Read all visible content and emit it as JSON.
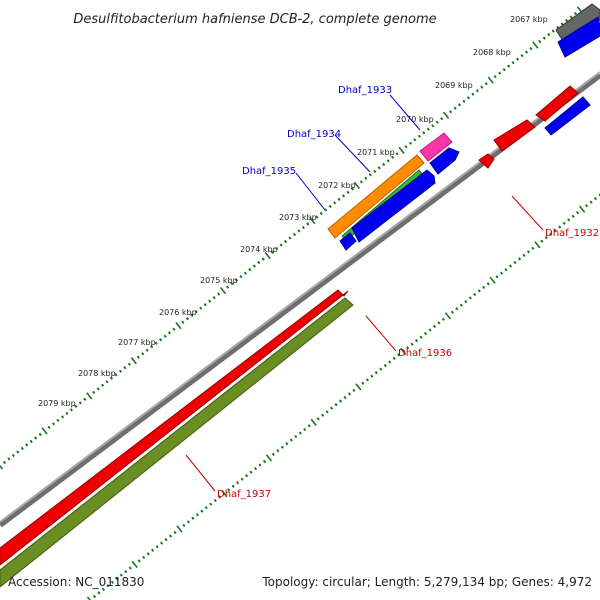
{
  "title": "Desulfitobacterium hafniense DCB-2, complete genome",
  "footer": {
    "accession": "Accession: NC_011830",
    "summary": "Topology: circular; Length: 5,279,134 bp; Genes: 4,972"
  },
  "colors": {
    "backbone": "#808080",
    "ticks": "#1a7a1a",
    "forward_gene": "#0000ee",
    "reverse_gene": "#ee0000",
    "orange_gene": "#ff8c00",
    "green_gene": "#33bb33",
    "pink_gene": "#ff33aa",
    "gray_gene": "#666666",
    "olive_gene": "#6b8e23",
    "label_forward": "#0000cc",
    "label_reverse": "#cc0000"
  },
  "scale_labels": [
    "2067 kbp",
    "2068 kbp",
    "2069 kbp",
    "2070 kbp",
    "2071 kbp",
    "2072 kbp",
    "2073 kbp",
    "2074 kbp",
    "2075 kbp",
    "2076 kbp",
    "2077 kbp",
    "2078 kbp",
    "2079 kbp"
  ],
  "gene_labels": {
    "dhaf1933": "Dhaf_1933",
    "dhaf1934": "Dhaf_1934",
    "dhaf1935": "Dhaf_1935",
    "dhaf1932": "Dhaf_1932",
    "dhaf1936": "Dhaf_1936",
    "dhaf1937": "Dhaf_1937"
  }
}
